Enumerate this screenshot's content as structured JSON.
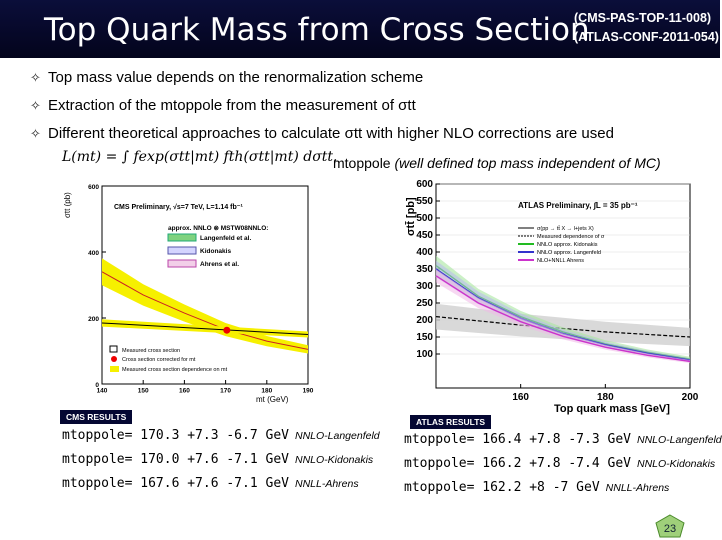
{
  "title": "Top Quark Mass from Cross Section",
  "refs": [
    "(CMS-PAS-TOP-11-008)",
    "(ATLAS-CONF-2011-054)"
  ],
  "bullets": [
    "Top mass value depends on the renormalization scheme",
    "Extraction of the mtoppole from the measurement of σtt",
    "Different theoretical approaches to calculate σtt with higher NLO corrections are used"
  ],
  "formula": "L(mt) = ∫ fexp(σtt|mt) fth(σtt|mt) dσtt.",
  "mpole_note_a": "mtoppole",
  "mpole_note_b": "(well defined top mass independent of MC)",
  "cms": {
    "badge": "CMS RESULTS",
    "results": [
      {
        "text": "mtoppole= 170.3 +7.3 -6.7 GeV",
        "ref": "NNLO-Langenfeld"
      },
      {
        "text": "mtoppole= 170.0 +7.6 -7.1 GeV",
        "ref": "NNLO-Kidonakis"
      },
      {
        "text": "mtoppole= 167.6 +7.6 -7.1 GeV",
        "ref": "NNLL-Ahrens"
      }
    ],
    "plot_title": "CMS Preliminary, √s=7 TeV, L=1.14 fb⁻¹",
    "legend_header": "approx. NNLO ⊗ MSTW08NNLO:",
    "legend": [
      "Langenfeld et al.",
      "Kidonakis",
      "Ahrens et al."
    ],
    "legend2": [
      "Measured cross section",
      "Cross section corrected for mt",
      "Measured cross section dependence on mt"
    ],
    "ylabel": "σtt (pb)",
    "xlabel": "mt (GeV)"
  },
  "atlas": {
    "badge": "ATLAS RESULTS",
    "results": [
      {
        "text": "mtoppole= 166.4 +7.8 -7.3 GeV",
        "ref": "NNLO-Langenfeld"
      },
      {
        "text": "mtoppole= 166.2 +7.8 -7.4 GeV",
        "ref": "NNLO-Kidonakis"
      },
      {
        "text": "mtoppole= 162.2 +8 -7 GeV",
        "ref": "NNLL-Ahrens"
      }
    ],
    "plot_title": "ATLAS Preliminary,  ∫L = 35 pb⁻¹",
    "legend": [
      "σ(pp → tt̄ X → l+jets X)",
      "Measured dependence of σ",
      "NNLO approx. Kidonakis",
      "NNLO approx. Langenfeld",
      "NLO+NNLL Ahrens"
    ],
    "ylabel": "σtt̄ [pb]",
    "xlabel": "Top quark mass [GeV]"
  },
  "page_number": "23",
  "chart_data": [
    {
      "type": "line",
      "title": "CMS Preliminary, √s=7 TeV, L=1.14 fb⁻¹",
      "xlabel": "mt (GeV)",
      "ylabel": "σtt (pb)",
      "xlim": [
        140,
        190
      ],
      "ylim": [
        0,
        600
      ],
      "x_ticks": [
        140,
        150,
        160,
        170,
        180,
        190
      ],
      "y_ticks": [
        0,
        200,
        400,
        600
      ],
      "series": [
        {
          "name": "Langenfeld et al.",
          "x": [
            140,
            150,
            160,
            170,
            180,
            190
          ],
          "values": [
            340,
            270,
            215,
            165,
            130,
            105
          ]
        },
        {
          "name": "Measured cross section dependence on mt",
          "x": [
            140,
            190
          ],
          "values": [
            185,
            150
          ]
        }
      ],
      "points": [
        {
          "name": "Cross section corrected for mt",
          "x": 170.3,
          "y": 163
        }
      ]
    },
    {
      "type": "line",
      "title": "ATLAS Preliminary, ∫L = 35 pb⁻¹",
      "xlabel": "Top quark mass [GeV]",
      "ylabel": "σtt̄ [pb]",
      "xlim": [
        140,
        200
      ],
      "ylim": [
        0,
        600
      ],
      "x_ticks": [
        160,
        180,
        200
      ],
      "y_ticks": [
        100,
        150,
        200,
        250,
        300,
        350,
        400,
        450,
        500,
        550,
        600
      ],
      "series": [
        {
          "name": "Measured dependence of σ",
          "x": [
            140,
            160,
            180,
            200
          ],
          "values": [
            210,
            185,
            165,
            150
          ]
        },
        {
          "name": "NNLO approx. Kidonakis",
          "x": [
            140,
            150,
            160,
            170,
            180,
            190,
            200
          ],
          "values": [
            360,
            270,
            210,
            165,
            130,
            105,
            85
          ]
        },
        {
          "name": "NNLO approx. Langenfeld",
          "x": [
            140,
            150,
            160,
            170,
            180,
            190,
            200
          ],
          "values": [
            350,
            265,
            205,
            160,
            127,
            102,
            82
          ]
        },
        {
          "name": "NLO+NNLL Ahrens",
          "x": [
            140,
            150,
            160,
            170,
            180,
            190,
            200
          ],
          "values": [
            330,
            250,
            195,
            152,
            120,
            96,
            78
          ]
        }
      ]
    }
  ]
}
